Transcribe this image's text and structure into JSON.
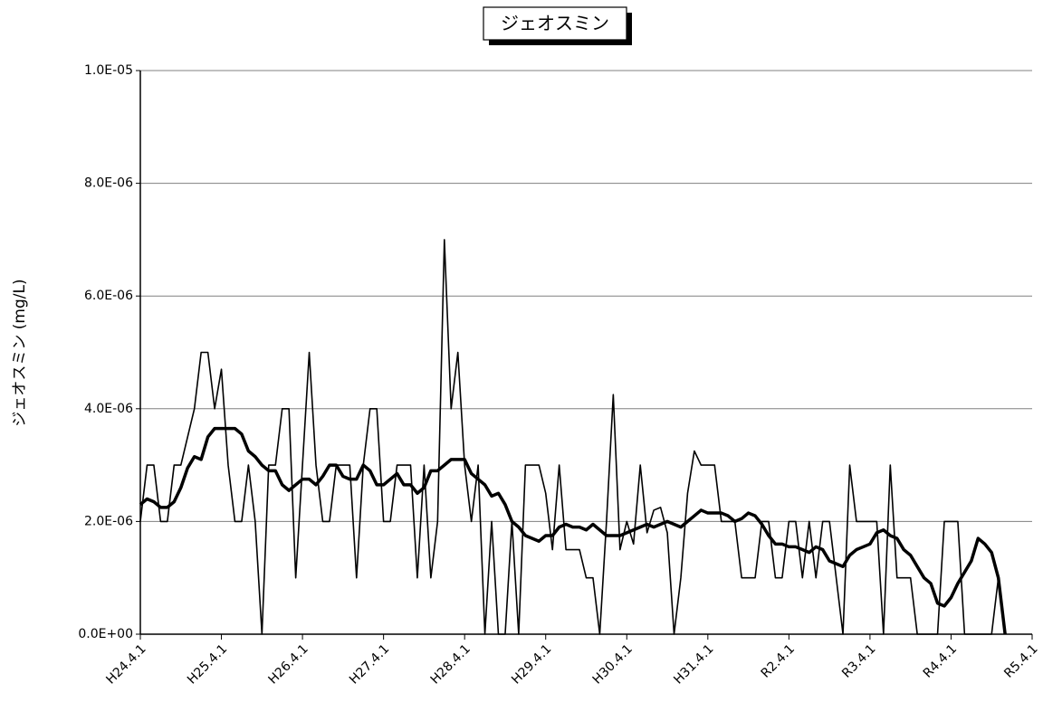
{
  "chart_data": {
    "type": "line",
    "title": "ジェオスミン",
    "y_label": "ジェオスミン (mg/L)",
    "grid": true,
    "ylim": [
      0,
      1e-05
    ],
    "yticks": [
      {
        "value": 0,
        "label": "0.0E+00"
      },
      {
        "value": 2e-06,
        "label": "2.0E-06"
      },
      {
        "value": 4e-06,
        "label": "4.0E-06"
      },
      {
        "value": 6e-06,
        "label": "6.0E-06"
      },
      {
        "value": 8e-06,
        "label": "8.0E-06"
      },
      {
        "value": 1e-05,
        "label": "1.0E-05"
      }
    ],
    "categories": [
      "H24.4.1",
      null,
      null,
      null,
      null,
      null,
      null,
      null,
      null,
      null,
      null,
      null,
      "H25.4.1",
      null,
      null,
      null,
      null,
      null,
      null,
      null,
      null,
      null,
      null,
      null,
      "H26.4.1",
      null,
      null,
      null,
      null,
      null,
      null,
      null,
      null,
      null,
      null,
      null,
      "H27.4.1",
      null,
      null,
      null,
      null,
      null,
      null,
      null,
      null,
      null,
      null,
      null,
      "H28.4.1",
      null,
      null,
      null,
      null,
      null,
      null,
      null,
      null,
      null,
      null,
      null,
      "H29.4.1",
      null,
      null,
      null,
      null,
      null,
      null,
      null,
      null,
      null,
      null,
      null,
      "H30.4.1",
      null,
      null,
      null,
      null,
      null,
      null,
      null,
      null,
      null,
      null,
      null,
      "H31.4.1",
      null,
      null,
      null,
      null,
      null,
      null,
      null,
      null,
      null,
      null,
      null,
      "R2.4.1",
      null,
      null,
      null,
      null,
      null,
      null,
      null,
      null,
      null,
      null,
      null,
      "R3.4.1",
      null,
      null,
      null,
      null,
      null,
      null,
      null,
      null,
      null,
      null,
      null,
      "R4.4.1",
      null,
      null,
      null,
      null,
      null,
      null,
      null,
      null,
      null,
      null,
      null,
      "R5.4.1"
    ],
    "series": [
      {
        "color": "#000000",
        "line_width": 1.6,
        "values": [
          2e-06,
          3e-06,
          3e-06,
          2e-06,
          2e-06,
          3e-06,
          3e-06,
          3.5e-06,
          4e-06,
          5e-06,
          5e-06,
          4e-06,
          4.7e-06,
          3e-06,
          2e-06,
          2e-06,
          3e-06,
          2e-06,
          0,
          3e-06,
          3e-06,
          4e-06,
          4e-06,
          1e-06,
          3e-06,
          5e-06,
          3e-06,
          2e-06,
          2e-06,
          3e-06,
          3e-06,
          3e-06,
          1e-06,
          3e-06,
          4e-06,
          4e-06,
          2e-06,
          2e-06,
          3e-06,
          3e-06,
          3e-06,
          1e-06,
          3e-06,
          1e-06,
          2e-06,
          7e-06,
          4e-06,
          5e-06,
          3e-06,
          2e-06,
          3e-06,
          0,
          2e-06,
          0,
          0,
          2e-06,
          0,
          3e-06,
          3e-06,
          3e-06,
          2.5e-06,
          1.5e-06,
          3e-06,
          1.5e-06,
          1.5e-06,
          1.5e-06,
          1e-06,
          1e-06,
          0,
          2e-06,
          4.25e-06,
          1.5e-06,
          2e-06,
          1.6e-06,
          3e-06,
          1.8e-06,
          2.2e-06,
          2.25e-06,
          1.8e-06,
          0,
          1e-06,
          2.5e-06,
          3.25e-06,
          3e-06,
          3e-06,
          3e-06,
          2e-06,
          2e-06,
          2e-06,
          1e-06,
          1e-06,
          1e-06,
          2e-06,
          2e-06,
          1e-06,
          1e-06,
          2e-06,
          2e-06,
          1e-06,
          2e-06,
          1e-06,
          2e-06,
          2e-06,
          1e-06,
          0,
          3e-06,
          2e-06,
          2e-06,
          2e-06,
          2e-06,
          0,
          3e-06,
          1e-06,
          1e-06,
          1e-06,
          0,
          0,
          0,
          0,
          2e-06,
          2e-06,
          2e-06,
          0,
          0,
          0,
          0,
          0,
          1e-06,
          null,
          null,
          null,
          null,
          null
        ]
      },
      {
        "color": "#000000",
        "line_width": 3.5,
        "values": [
          2.3e-06,
          2.4e-06,
          2.35e-06,
          2.25e-06,
          2.25e-06,
          2.35e-06,
          2.6e-06,
          2.95e-06,
          3.15e-06,
          3.1e-06,
          3.5e-06,
          3.65e-06,
          3.65e-06,
          3.65e-06,
          3.65e-06,
          3.55e-06,
          3.25e-06,
          3.15e-06,
          3e-06,
          2.9e-06,
          2.9e-06,
          2.65e-06,
          2.55e-06,
          2.65e-06,
          2.75e-06,
          2.75e-06,
          2.65e-06,
          2.8e-06,
          3e-06,
          3e-06,
          2.8e-06,
          2.75e-06,
          2.75e-06,
          3e-06,
          2.9e-06,
          2.65e-06,
          2.65e-06,
          2.75e-06,
          2.85e-06,
          2.65e-06,
          2.65e-06,
          2.5e-06,
          2.6e-06,
          2.9e-06,
          2.9e-06,
          3e-06,
          3.1e-06,
          3.1e-06,
          3.1e-06,
          2.85e-06,
          2.75e-06,
          2.65e-06,
          2.45e-06,
          2.5e-06,
          2.3e-06,
          2e-06,
          1.9e-06,
          1.75e-06,
          1.7e-06,
          1.65e-06,
          1.75e-06,
          1.75e-06,
          1.9e-06,
          1.95e-06,
          1.9e-06,
          1.9e-06,
          1.85e-06,
          1.95e-06,
          1.85e-06,
          1.75e-06,
          1.75e-06,
          1.75e-06,
          1.8e-06,
          1.85e-06,
          1.9e-06,
          1.95e-06,
          1.9e-06,
          1.95e-06,
          2e-06,
          1.95e-06,
          1.9e-06,
          2e-06,
          2.1e-06,
          2.2e-06,
          2.15e-06,
          2.15e-06,
          2.15e-06,
          2.1e-06,
          2e-06,
          2.05e-06,
          2.15e-06,
          2.1e-06,
          1.95e-06,
          1.75e-06,
          1.6e-06,
          1.6e-06,
          1.55e-06,
          1.55e-06,
          1.5e-06,
          1.45e-06,
          1.55e-06,
          1.5e-06,
          1.3e-06,
          1.25e-06,
          1.2e-06,
          1.4e-06,
          1.5e-06,
          1.55e-06,
          1.6e-06,
          1.8e-06,
          1.85e-06,
          1.75e-06,
          1.7e-06,
          1.5e-06,
          1.4e-06,
          1.2e-06,
          1e-06,
          9e-07,
          5.5e-07,
          5e-07,
          6.5e-07,
          9e-07,
          1.1e-06,
          1.3e-06,
          1.7e-06,
          1.6e-06,
          1.45e-06,
          1e-06,
          0,
          null,
          null,
          null,
          null
        ]
      }
    ]
  }
}
